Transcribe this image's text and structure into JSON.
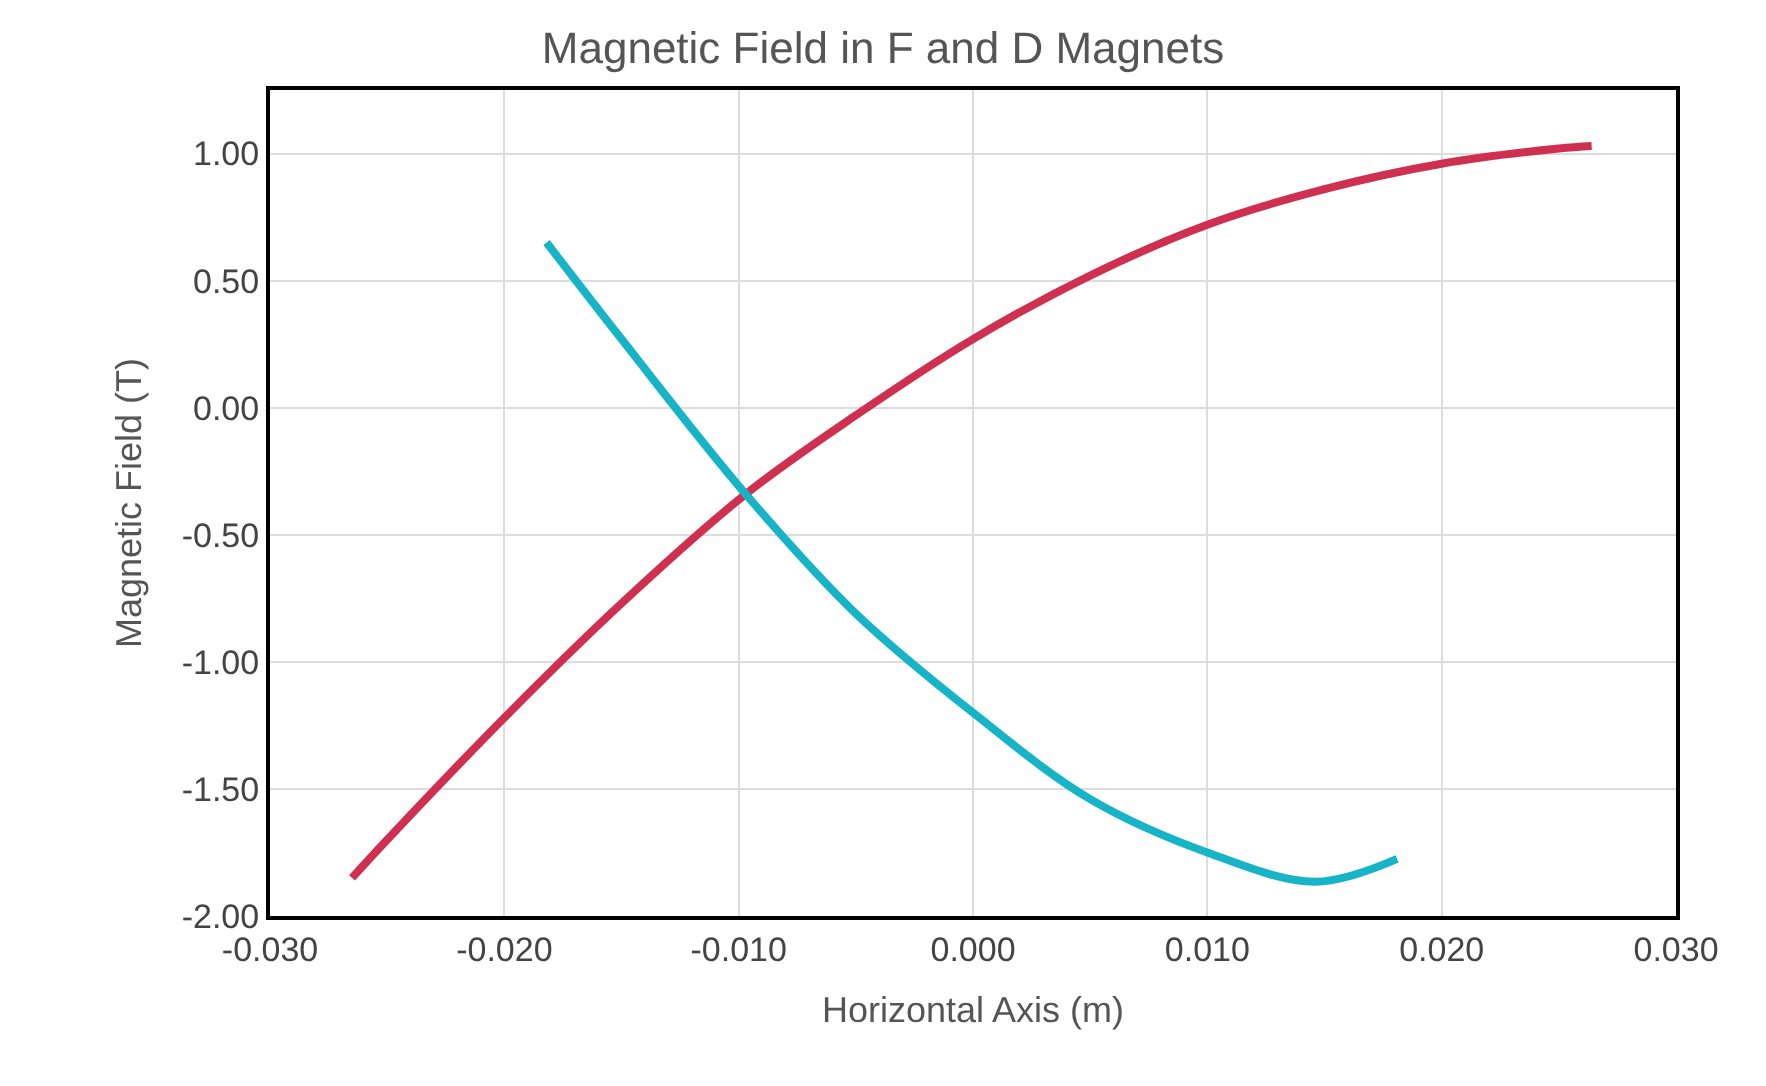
{
  "chart_data": {
    "type": "line",
    "title": "Magnetic Field in F and D Magnets",
    "xlabel": "Horizontal Axis (m)",
    "ylabel": "Magnetic Field (T)",
    "xlim": [
      -0.03,
      0.03
    ],
    "xticks": [
      {
        "value": -0.03,
        "label": "-0.030"
      },
      {
        "value": -0.02,
        "label": "-0.020"
      },
      {
        "value": -0.01,
        "label": "-0.010"
      },
      {
        "value": 0,
        "label": "0.000"
      },
      {
        "value": 0.01,
        "label": "0.010"
      },
      {
        "value": 0.02,
        "label": "0.020"
      },
      {
        "value": 0.03,
        "label": "0.030"
      }
    ],
    "ylim": [
      -2,
      1.25
    ],
    "yticks": [
      {
        "value": -2,
        "label": "-2.00"
      },
      {
        "value": -1.5,
        "label": "-1.50"
      },
      {
        "value": -1,
        "label": "-1.00"
      },
      {
        "value": -0.5,
        "label": "-0.50"
      },
      {
        "value": 0,
        "label": "0.00"
      },
      {
        "value": 0.5,
        "label": "0.50"
      },
      {
        "value": 1,
        "label": "1.00"
      }
    ],
    "grid": true,
    "line_style": "solid",
    "series": [
      {
        "color": "#d0304f",
        "x": [
          -0.0265,
          -0.025,
          -0.02,
          -0.015,
          -0.0097,
          -0.005,
          0,
          0.005,
          0.01,
          0.015,
          0.02,
          0.025,
          0.0264
        ],
        "values": [
          -1.85,
          -1.7,
          -1.22,
          -0.77,
          -0.34,
          -0.03,
          0.27,
          0.52,
          0.72,
          0.86,
          0.96,
          1.02,
          1.03
        ]
      },
      {
        "color": "#17b4c8",
        "x": [
          -0.0182,
          -0.015,
          -0.0097,
          -0.005,
          0,
          0.005,
          0.01,
          0.0146,
          0.0181
        ],
        "values": [
          0.65,
          0.27,
          -0.34,
          -0.81,
          -1.2,
          -1.54,
          -1.75,
          -1.865,
          -1.775
        ]
      }
    ]
  }
}
